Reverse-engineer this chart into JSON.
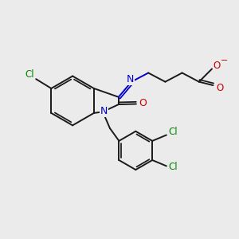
{
  "bg_color": "#ebebeb",
  "bond_color": "#1a1a1a",
  "n_color": "#0000cc",
  "o_color": "#cc0000",
  "cl_color": "#008800",
  "lw": 1.4,
  "figsize": [
    3.0,
    3.0
  ],
  "dpi": 100,
  "xlim": [
    0,
    10
  ],
  "ylim": [
    0,
    10
  ]
}
